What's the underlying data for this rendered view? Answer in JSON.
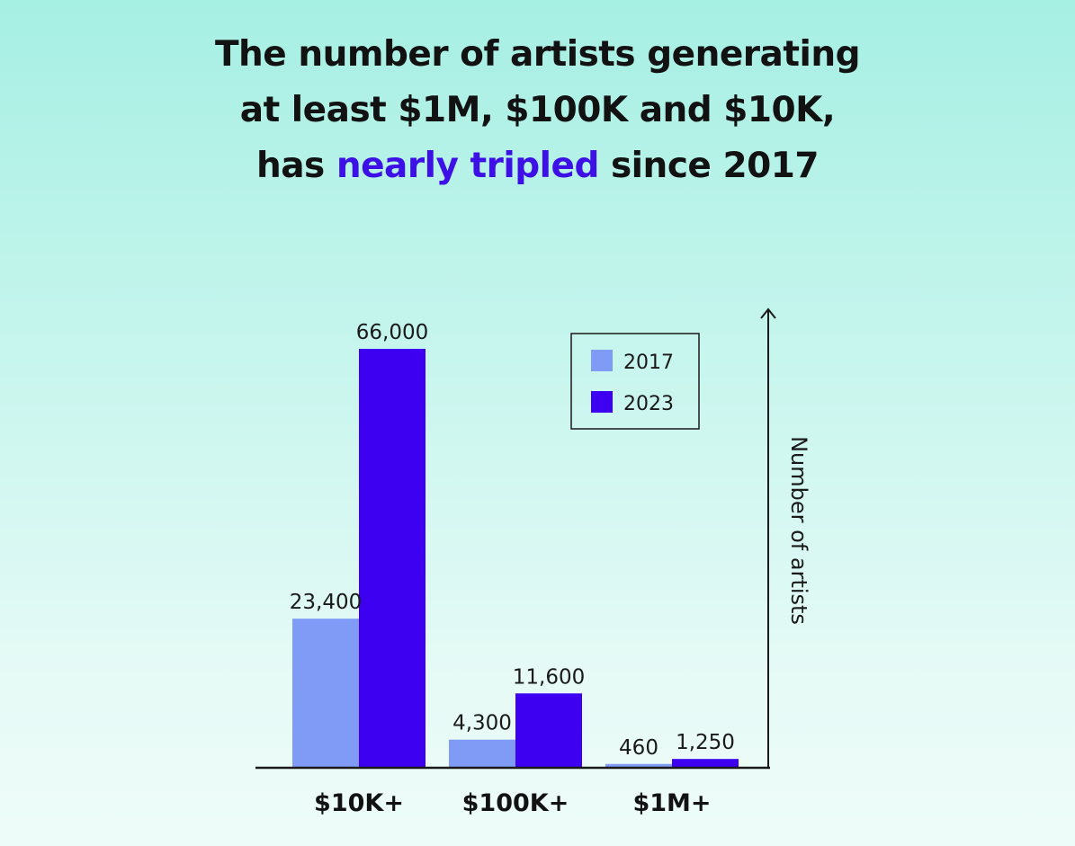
{
  "title": {
    "line1": "The number of artists generating",
    "line2": "at least $1M, $100K and $10K,",
    "line3_pre": "has ",
    "line3_highlight": "nearly tripled",
    "line3_post": " since 2017"
  },
  "colors": {
    "series_2017": "#7f9bf5",
    "series_2023": "#3d00f0",
    "highlight": "#3d11e6",
    "axis": "#1a1a1a"
  },
  "chart_data": {
    "type": "bar",
    "categories": [
      "$10K+",
      "$100K+",
      "$1M+"
    ],
    "series": [
      {
        "name": "2017",
        "values": [
          23400,
          4300,
          460
        ],
        "labels": [
          "23,400",
          "4,300",
          "460"
        ]
      },
      {
        "name": "2023",
        "values": [
          66000,
          11600,
          1250
        ],
        "labels": [
          "66,000",
          "11,600",
          "1,250"
        ]
      }
    ],
    "ylabel": "Number of artists",
    "legend": "top-right",
    "grid": false
  }
}
